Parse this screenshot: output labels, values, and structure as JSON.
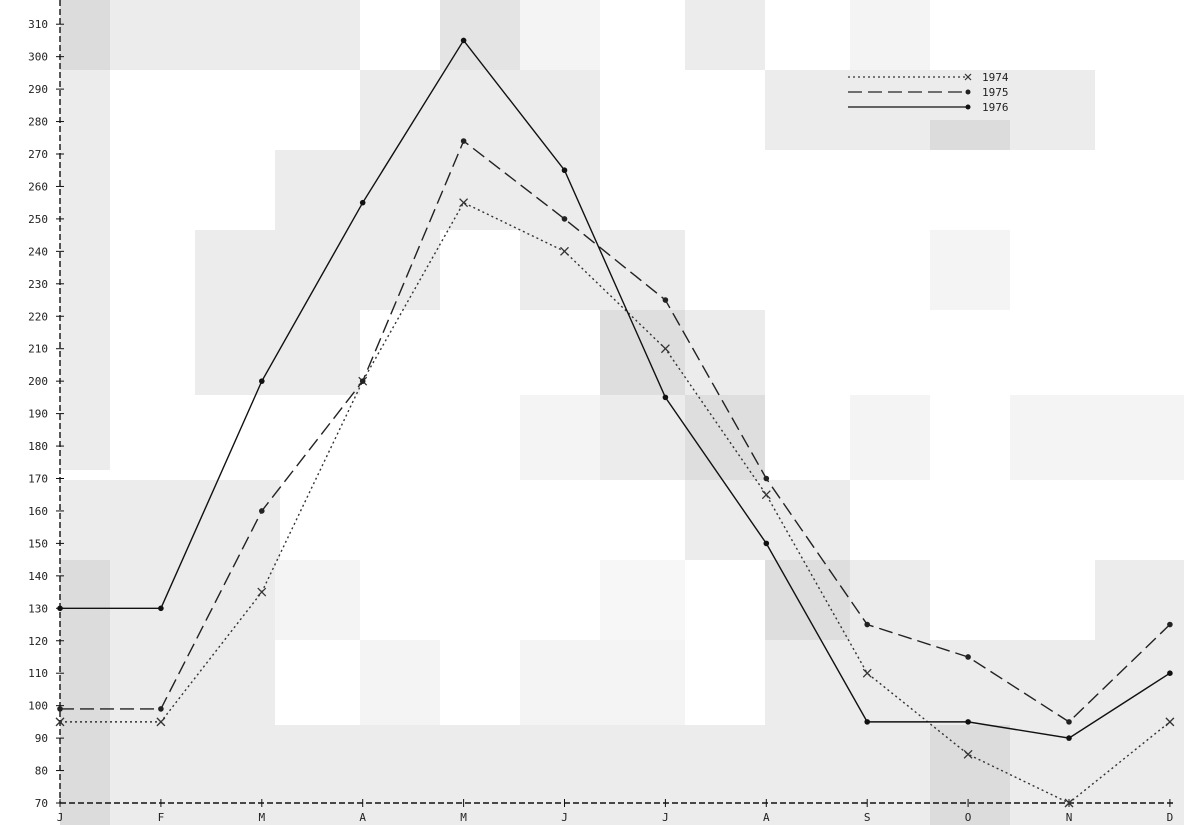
{
  "chart_data": {
    "type": "line",
    "title": "",
    "xlabel": "",
    "ylabel": "",
    "categories": [
      "J",
      "F",
      "M",
      "A",
      "M",
      "J",
      "J",
      "A",
      "S",
      "O",
      "N",
      "D"
    ],
    "ylim": [
      70,
      310
    ],
    "yticks": [
      70,
      80,
      90,
      100,
      110,
      120,
      130,
      140,
      150,
      160,
      170,
      180,
      190,
      200,
      210,
      220,
      230,
      240,
      250,
      260,
      270,
      280,
      290,
      300,
      310
    ],
    "grid": false,
    "legend_position": "top-right",
    "series": [
      {
        "name": "1974",
        "style": "dotted",
        "marker": "x",
        "color": "#333333",
        "values": [
          95,
          95,
          135,
          200,
          255,
          240,
          210,
          165,
          110,
          85,
          70,
          95
        ]
      },
      {
        "name": "1975",
        "style": "dashed",
        "marker": "dot",
        "color": "#222222",
        "values": [
          99,
          99,
          160,
          200,
          274,
          250,
          225,
          170,
          125,
          115,
          95,
          125
        ]
      },
      {
        "name": "1976",
        "style": "solid",
        "marker": "dot",
        "color": "#111111",
        "values": [
          130,
          130,
          200,
          255,
          305,
          265,
          195,
          150,
          95,
          95,
          90,
          110
        ]
      }
    ]
  }
}
